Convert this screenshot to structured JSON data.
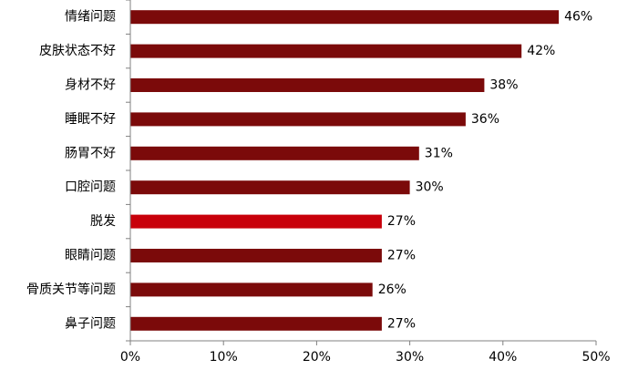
{
  "chart_data": {
    "type": "bar",
    "orientation": "horizontal",
    "title": "",
    "xlabel": "",
    "ylabel": "",
    "categories": [
      "情绪问题",
      "皮肤状态不好",
      "身材不好",
      "睡眠不好",
      "肠胃不好",
      "口腔问题",
      "脱发",
      "眼睛问题",
      "骨质关节等问题",
      "鼻子问题"
    ],
    "values": [
      46,
      42,
      38,
      36,
      31,
      30,
      27,
      27,
      26,
      27
    ],
    "value_labels": [
      "46%",
      "42%",
      "38%",
      "36%",
      "31%",
      "30%",
      "27%",
      "27%",
      "26%",
      "27%"
    ],
    "highlight_index": 6,
    "xlim": [
      0,
      50
    ],
    "x_ticks": [
      0,
      10,
      20,
      30,
      40,
      50
    ],
    "x_tick_labels": [
      "0%",
      "10%",
      "20%",
      "30%",
      "40%",
      "50%"
    ],
    "grid": false,
    "legend": "none",
    "colors": {
      "bar": "#7b0a0a",
      "highlight": "#c8000a",
      "axis": "#808080"
    }
  }
}
